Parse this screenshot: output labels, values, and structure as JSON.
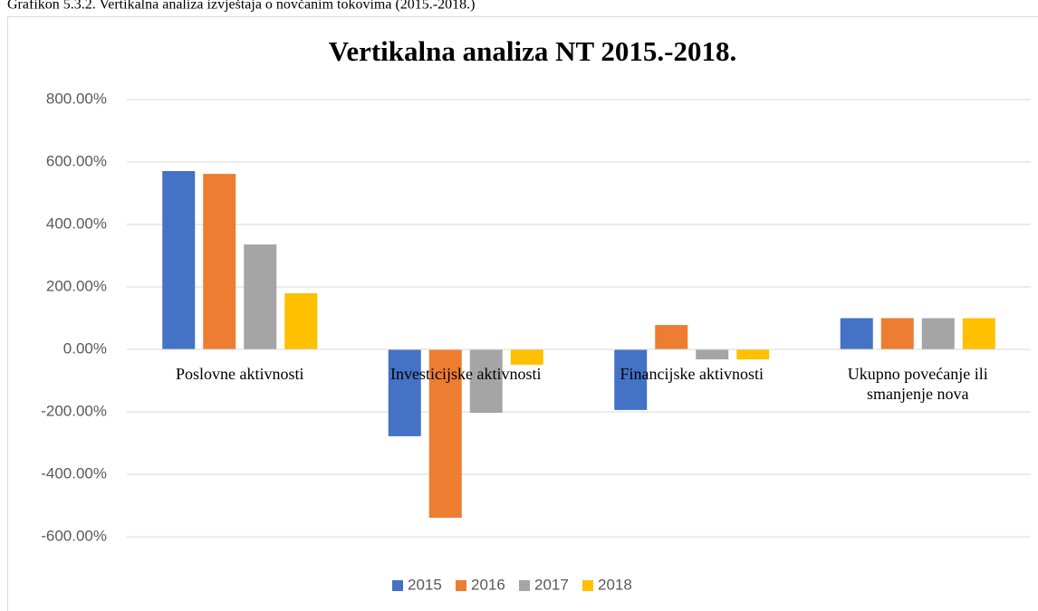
{
  "caption": "Grafikon 5.3.2. Vertikalna analiza izvještaja o novčanim tokovima (2015.-2018.)",
  "chart_data": {
    "type": "bar",
    "title": "Vertikalna analiza NT 2015.-2018.",
    "categories": [
      "Poslovne aktivnosti",
      "Investicijske aktivnosti",
      "Financijske aktivnosti",
      "Ukupno povećanje ili smanjenje nova"
    ],
    "series": [
      {
        "name": "2015",
        "color": "#4472c4",
        "values": [
          571,
          -278,
          -194,
          100
        ]
      },
      {
        "name": "2016",
        "color": "#ed7d31",
        "values": [
          562,
          -539,
          78,
          100
        ]
      },
      {
        "name": "2017",
        "color": "#a5a5a5",
        "values": [
          336,
          -203,
          -32,
          100
        ]
      },
      {
        "name": "2018",
        "color": "#ffc000",
        "values": [
          180,
          -49,
          -32,
          100
        ]
      }
    ],
    "ylim": [
      -600,
      800
    ],
    "yticks": [
      {
        "value": -600,
        "label": "-600.00%"
      },
      {
        "value": -400,
        "label": "-400.00%"
      },
      {
        "value": -200,
        "label": "-200.00%"
      },
      {
        "value": 0,
        "label": "0.00%"
      },
      {
        "value": 200,
        "label": "200.00%"
      },
      {
        "value": 400,
        "label": "400.00%"
      },
      {
        "value": 600,
        "label": "600.00%"
      },
      {
        "value": 800,
        "label": "800.00%"
      }
    ],
    "grid": true,
    "legend": "bottom"
  }
}
